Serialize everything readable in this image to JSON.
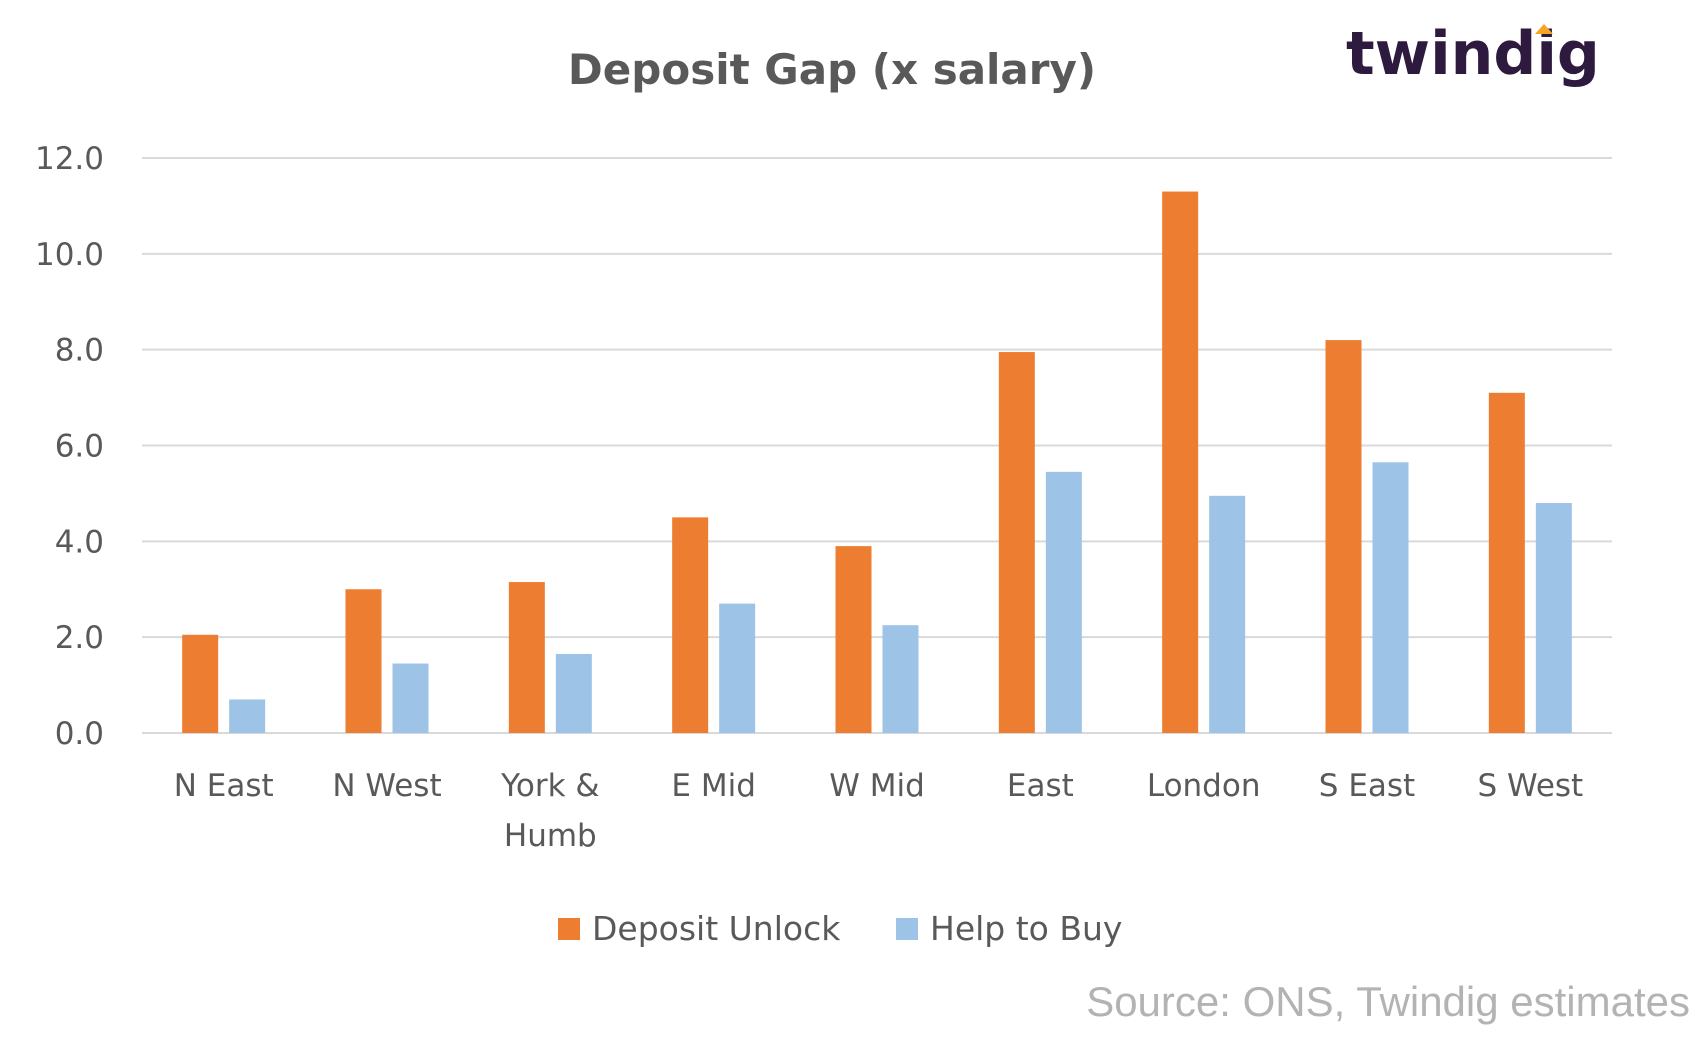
{
  "chart_data": {
    "type": "bar",
    "title": "Deposit Gap (x salary)",
    "categories": [
      [
        "N East"
      ],
      [
        "N West"
      ],
      [
        "York &",
        "Humb"
      ],
      [
        "E Mid"
      ],
      [
        "W Mid"
      ],
      [
        "East"
      ],
      [
        "London"
      ],
      [
        "S East"
      ],
      [
        "S West"
      ]
    ],
    "series": [
      {
        "name": "Deposit Unlock",
        "color": "#ed7d31",
        "values": [
          2.05,
          3.0,
          3.15,
          4.5,
          3.9,
          7.95,
          11.3,
          8.2,
          7.1
        ]
      },
      {
        "name": "Help to Buy",
        "color": "#9dc3e6",
        "values": [
          0.7,
          1.45,
          1.65,
          2.7,
          2.25,
          5.45,
          4.95,
          5.65,
          4.8
        ]
      }
    ],
    "ylim": [
      0,
      12
    ],
    "yticks": [
      "0.0",
      "2.0",
      "4.0",
      "6.0",
      "8.0",
      "10.0",
      "12.0"
    ],
    "ytick_values": [
      0,
      2,
      4,
      6,
      8,
      10,
      12
    ],
    "grid": true,
    "legend": "bottom",
    "xlabel": "",
    "ylabel": ""
  },
  "logo": {
    "text": "twindig",
    "accent_color": "#f5a623",
    "text_color": "#2d1a3e"
  },
  "source": "Source: ONS, Twindig estimates"
}
